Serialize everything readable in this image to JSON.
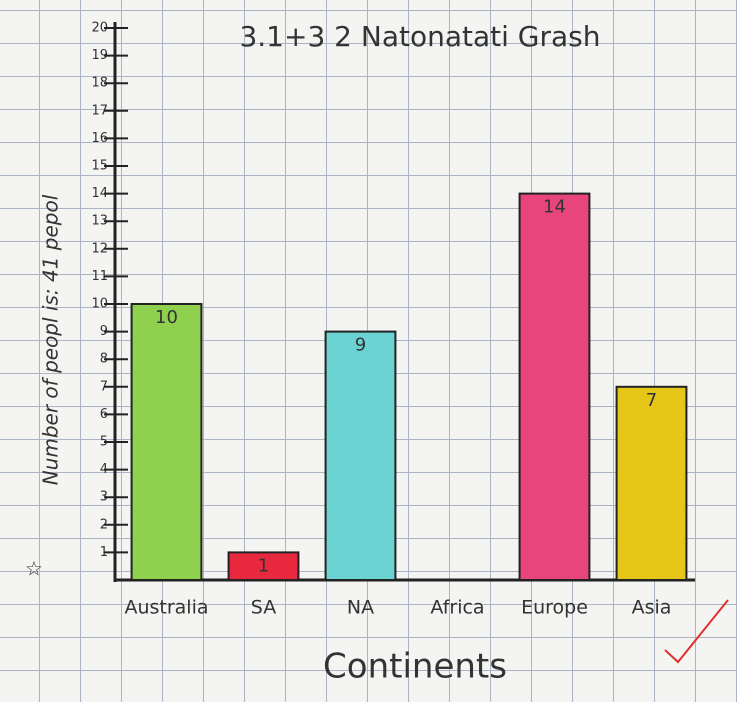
{
  "chart_data": {
    "type": "bar",
    "title": "3.1+3 2 Natonatati Grash",
    "y_label": "Number of peopl is: 41 pepol",
    "x_label": "Continents",
    "categories": [
      "Australia",
      "SA",
      "NA",
      "Africa",
      "Europe",
      "Asia"
    ],
    "values": [
      10,
      1,
      9,
      0,
      14,
      7
    ],
    "colors": [
      "#8fd14f",
      "#e8283f",
      "#6cd3d3",
      "none",
      "#e8457d",
      "#e6c619"
    ],
    "ylim": [
      0,
      20
    ],
    "yticks": [
      1,
      2,
      3,
      4,
      5,
      6,
      7,
      8,
      9,
      10,
      11,
      12,
      13,
      14,
      15,
      16,
      17,
      18,
      19,
      20
    ]
  }
}
